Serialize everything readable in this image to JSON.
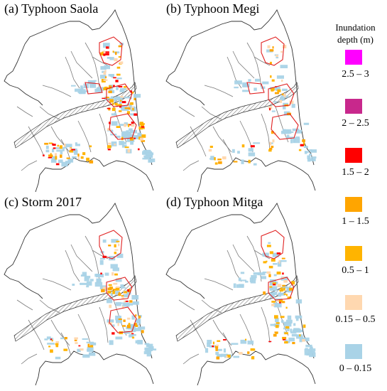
{
  "panels": [
    {
      "id": "a",
      "title": "(a) Typhoon Saola",
      "extent": "high",
      "red_polygons": "many"
    },
    {
      "id": "b",
      "title": "(b) Typhoon Megi",
      "extent": "low",
      "red_polygons": "outlines"
    },
    {
      "id": "c",
      "title": "(c) Storm 2017",
      "extent": "medium",
      "red_polygons": "some"
    },
    {
      "id": "d",
      "title": "(d) Typhoon Mitga",
      "extent": "medium",
      "red_polygons": "few"
    }
  ],
  "legend": {
    "title_line1": "Inundation",
    "title_line2": "depth (m)",
    "items": [
      {
        "label": "2.5 – 3",
        "color": "#ff00ff"
      },
      {
        "label": "2 – 2.5",
        "color": "#c8288c"
      },
      {
        "label": "1.5 – 2",
        "color": "#ff0000"
      },
      {
        "label": "1 – 1.5",
        "color": "#ffa500"
      },
      {
        "label": "0.5 – 1",
        "color": "#ffb400"
      },
      {
        "label": "0.15 – 0.5",
        "color": "#ffd8b0"
      },
      {
        "label": "0 – 0.15",
        "color": "#a9d3e7"
      }
    ]
  },
  "colors": {
    "boundary": "#333333",
    "river_hatch": "#666666",
    "polygon_outline": "#e02020"
  }
}
